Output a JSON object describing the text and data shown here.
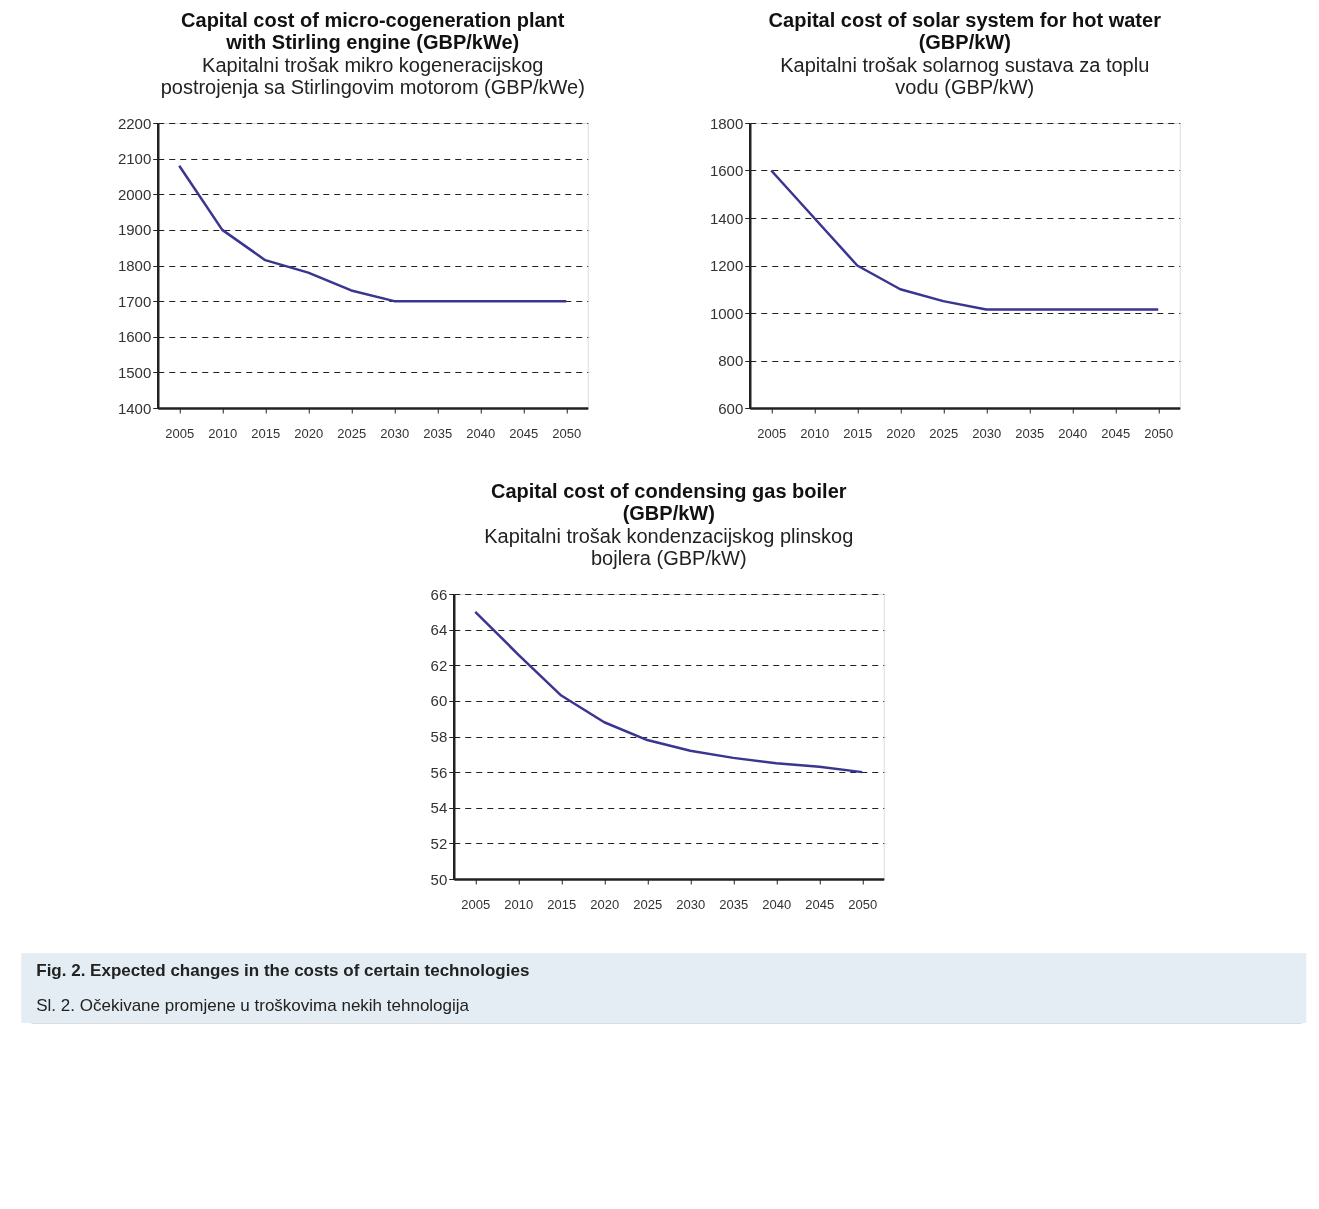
{
  "chart_data": [
    {
      "type": "line",
      "title": "Capital cost of micro-cogeneration plant with Stirling engine (GBP/kWe)",
      "subtitle": "Kapitalni trošak mikro kogeneracijskog postrojenja sa Stirlingovim motorom (GBP/kWe)",
      "categories": [
        "2005",
        "2010",
        "2015",
        "2020",
        "2025",
        "2030",
        "2035",
        "2040",
        "2045",
        "2050"
      ],
      "series": [
        {
          "color": "#3a3590",
          "values": [
            2080,
            1900,
            1815,
            1780,
            1730,
            1700,
            1700,
            1700,
            1700,
            1700
          ]
        }
      ],
      "ylim": [
        1400,
        2200
      ],
      "yticks": [
        1400,
        1500,
        1600,
        1700,
        1800,
        1900,
        2000,
        2100,
        2200
      ],
      "grid": "y",
      "line_style": "solid"
    },
    {
      "type": "line",
      "title": "Capital cost of solar system for hot water (GBP/kW)",
      "subtitle": "Kapitalni trošak solarnog sustava za toplu vodu (GBP/kW)",
      "categories": [
        "2005",
        "2010",
        "2015",
        "2020",
        "2025",
        "2030",
        "2035",
        "2040",
        "2045",
        "2050"
      ],
      "series": [
        {
          "color": "#3a3590",
          "values": [
            1600,
            1400,
            1200,
            1100,
            1050,
            1015,
            1015,
            1015,
            1015,
            1015
          ]
        }
      ],
      "ylim": [
        600,
        1800
      ],
      "yticks": [
        600,
        800,
        1000,
        1200,
        1400,
        1600,
        1800
      ],
      "grid": "y",
      "line_style": "solid"
    },
    {
      "type": "line",
      "title": "Capital cost of condensing gas boiler (GBP/kW)",
      "subtitle": "Kapitalni trošak kondenzacijskog plinskog bojlera (GBP/kW)",
      "categories": [
        "2005",
        "2010",
        "2015",
        "2020",
        "2025",
        "2030",
        "2035",
        "2040",
        "2045",
        "2050"
      ],
      "series": [
        {
          "color": "#3a3590",
          "values": [
            65,
            62.6,
            60.3,
            58.8,
            57.8,
            57.2,
            56.8,
            56.5,
            56.3,
            56.0
          ]
        }
      ],
      "ylim": [
        50,
        66
      ],
      "yticks": [
        50,
        52,
        54,
        56,
        58,
        60,
        62,
        64,
        66
      ],
      "grid": "y",
      "line_style": "solid",
      "annotations": [
        "Fig. 2. Expected changes in the costs of certain technologies",
        "Sl. 2. Očekivane promjene u troškovima nekih tehnologija"
      ]
    }
  ]
}
